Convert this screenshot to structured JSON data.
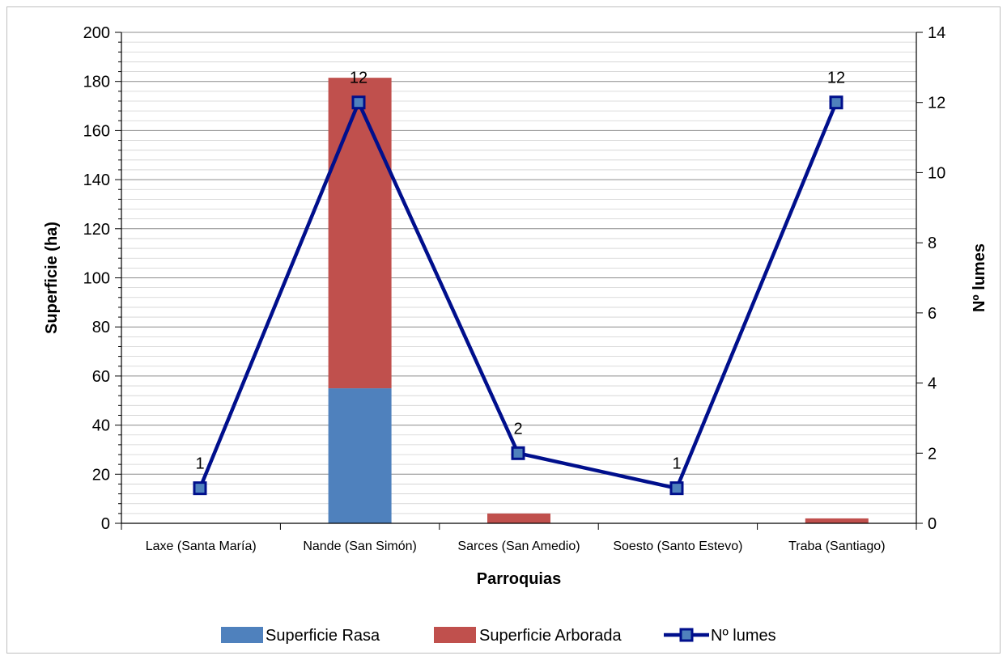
{
  "chart_data": {
    "type": "bar",
    "stacked": true,
    "categories": [
      "Laxe (Santa María)",
      "Nande (San Simón)",
      "Sarces (San Amedio)",
      "Soesto (Santo Estevo)",
      "Traba (Santiago)"
    ],
    "series": [
      {
        "name": "Superficie Rasa",
        "type": "bar",
        "axis": "left",
        "color": "#4f81bd",
        "values": [
          0,
          55,
          0,
          0,
          0
        ]
      },
      {
        "name": "Superficie Arborada",
        "type": "bar",
        "axis": "left",
        "color": "#c0504d",
        "values": [
          0,
          126.5,
          4,
          0,
          2
        ]
      },
      {
        "name": "Nº lumes",
        "type": "line",
        "axis": "right",
        "color": "#000f8c",
        "values": [
          1,
          12,
          2,
          1,
          12
        ]
      }
    ],
    "xlabel": "Parroquias",
    "ylabel": "Superficie (ha)",
    "y2label": "Nº lumes",
    "ylim": [
      0,
      200
    ],
    "y2lim": [
      0,
      14
    ],
    "yticks": [
      0,
      20,
      40,
      60,
      80,
      100,
      120,
      140,
      160,
      180,
      200
    ],
    "y2ticks": [
      0,
      2,
      4,
      6,
      8,
      10,
      12,
      14
    ],
    "grid": true,
    "legend": "bottom"
  }
}
